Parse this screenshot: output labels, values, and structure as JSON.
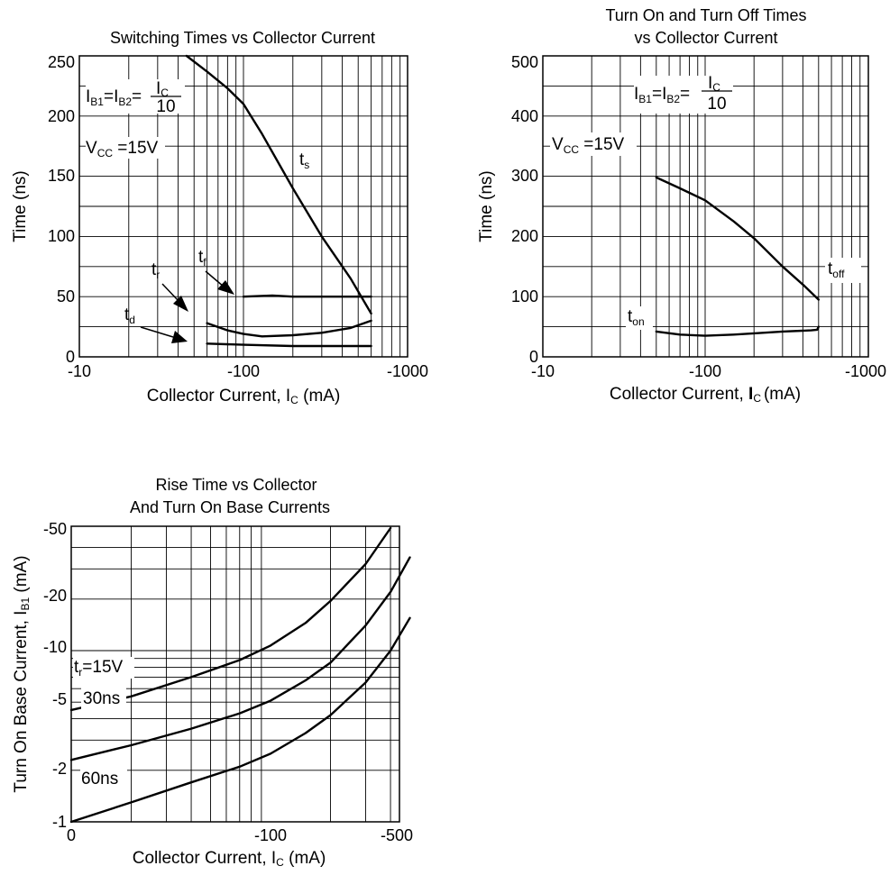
{
  "chart_data": [
    {
      "type": "line",
      "title": "Switching Times vs Collector Current",
      "xlabel": "Collector Current, I",
      "xlabel_sub": "C",
      "xlabel_unit": " (mA)",
      "ylabel": "Time (ns)",
      "x_scale": "log",
      "xlim": [
        -10,
        -1000
      ],
      "ylim": [
        0,
        250
      ],
      "x_ticks": [
        "-10",
        "-100",
        "-1000"
      ],
      "y_ticks": [
        "0",
        "50",
        "100",
        "150",
        "200",
        "250"
      ],
      "grid": true,
      "conditions": [
        {
          "parts": [
            "I",
            "B1",
            "=I",
            "B2",
            "="
          ],
          "frac_num": "I",
          "frac_num_sub": "C",
          "frac_den": "10"
        },
        {
          "parts": [
            "V",
            "CC",
            " =15V"
          ]
        }
      ],
      "series": [
        {
          "name": "t",
          "name_sub": "s",
          "x": [
            -45,
            -60,
            -80,
            -100,
            -130,
            -200,
            -300,
            -450,
            -600
          ],
          "y": [
            250,
            237,
            223,
            210,
            185,
            140,
            100,
            65,
            36
          ]
        },
        {
          "name": "t",
          "name_sub": "f",
          "x": [
            -100,
            -150,
            -200,
            -300,
            -450,
            -600
          ],
          "y": [
            50,
            51,
            50,
            50,
            50,
            50
          ]
        },
        {
          "name": "t",
          "name_sub": "r",
          "x": [
            -60,
            -80,
            -100,
            -130,
            -200,
            -300,
            -450,
            -600
          ],
          "y": [
            28,
            22,
            19,
            17,
            18,
            20,
            24,
            30
          ]
        },
        {
          "name": "t",
          "name_sub": "d",
          "x": [
            -60,
            -100,
            -200,
            -300,
            -600
          ],
          "y": [
            11,
            10,
            9,
            9,
            9
          ]
        }
      ]
    },
    {
      "type": "line",
      "title": "Turn On and Turn Off Times",
      "title2": "vs Collector Current",
      "xlabel": "Collector Current, ",
      "xlabel_bold": "I",
      "xlabel_sub": "C",
      "xlabel_unit": "(mA)",
      "ylabel": "Time (ns)",
      "x_scale": "log",
      "xlim": [
        -10,
        -1000
      ],
      "ylim": [
        0,
        500
      ],
      "x_ticks": [
        "-10",
        "-100",
        "-1000"
      ],
      "y_ticks": [
        "0",
        "100",
        "200",
        "300",
        "400",
        "500"
      ],
      "grid": true,
      "conditions": [
        {
          "parts": [
            "I",
            "B1",
            "=I",
            "B2",
            "="
          ],
          "frac_num": "I",
          "frac_num_sub": "C",
          "frac_den": "10"
        },
        {
          "parts": [
            "V",
            "CC",
            " =15V"
          ]
        }
      ],
      "series": [
        {
          "name": "t",
          "name_sub": "off",
          "x": [
            -50,
            -70,
            -100,
            -150,
            -200,
            -300,
            -400,
            -500
          ],
          "y": [
            298,
            280,
            260,
            225,
            197,
            150,
            120,
            95
          ]
        },
        {
          "name": "t",
          "name_sub": "on",
          "x": [
            -50,
            -70,
            -100,
            -150,
            -200,
            -300,
            -450,
            -490,
            -500
          ],
          "y": [
            42,
            37,
            35,
            37,
            39,
            42,
            44,
            45,
            50
          ]
        }
      ]
    },
    {
      "type": "line",
      "title": "Rise Time vs Collector",
      "title2": "And Turn On Base Currents",
      "xlabel": "Collector Current, I",
      "xlabel_sub": "C",
      "xlabel_unit": " (mA)",
      "ylabel": "Turn On Base Current, I",
      "ylabel_sub": "B1",
      "ylabel_unit": " (mA)",
      "x_scale": "log",
      "y_scale": "log",
      "x_ticks": [
        "0",
        "-100",
        "-500"
      ],
      "y_ticks": [
        "-1",
        "-2",
        "-5",
        "-10",
        "-20",
        "-50"
      ],
      "grid": true,
      "conditions": [
        {
          "parts": [
            "t",
            "r",
            "=15V"
          ]
        }
      ],
      "series": [
        {
          "name": "",
          "x": [
            -10,
            -20,
            -40,
            -70,
            -100,
            -150,
            -200,
            -300,
            -400
          ],
          "y": [
            -4.5,
            -5.4,
            -7,
            -8.8,
            -10.7,
            -14.5,
            -19.5,
            -32,
            -52
          ]
        },
        {
          "name": "30ns",
          "x": [
            -10,
            -20,
            -40,
            -70,
            -100,
            -150,
            -200,
            -300,
            -400,
            -500
          ],
          "y": [
            -2.3,
            -2.8,
            -3.5,
            -4.3,
            -5.1,
            -6.7,
            -8.5,
            -14,
            -22,
            -35
          ]
        },
        {
          "name": "60ns",
          "x": [
            -10,
            -20,
            -40,
            -70,
            -100,
            -150,
            -200,
            -300,
            -400,
            -500
          ],
          "y": [
            -1,
            -1.3,
            -1.7,
            -2.1,
            -2.5,
            -3.3,
            -4.2,
            -6.5,
            -10,
            -15.5
          ]
        }
      ]
    }
  ]
}
